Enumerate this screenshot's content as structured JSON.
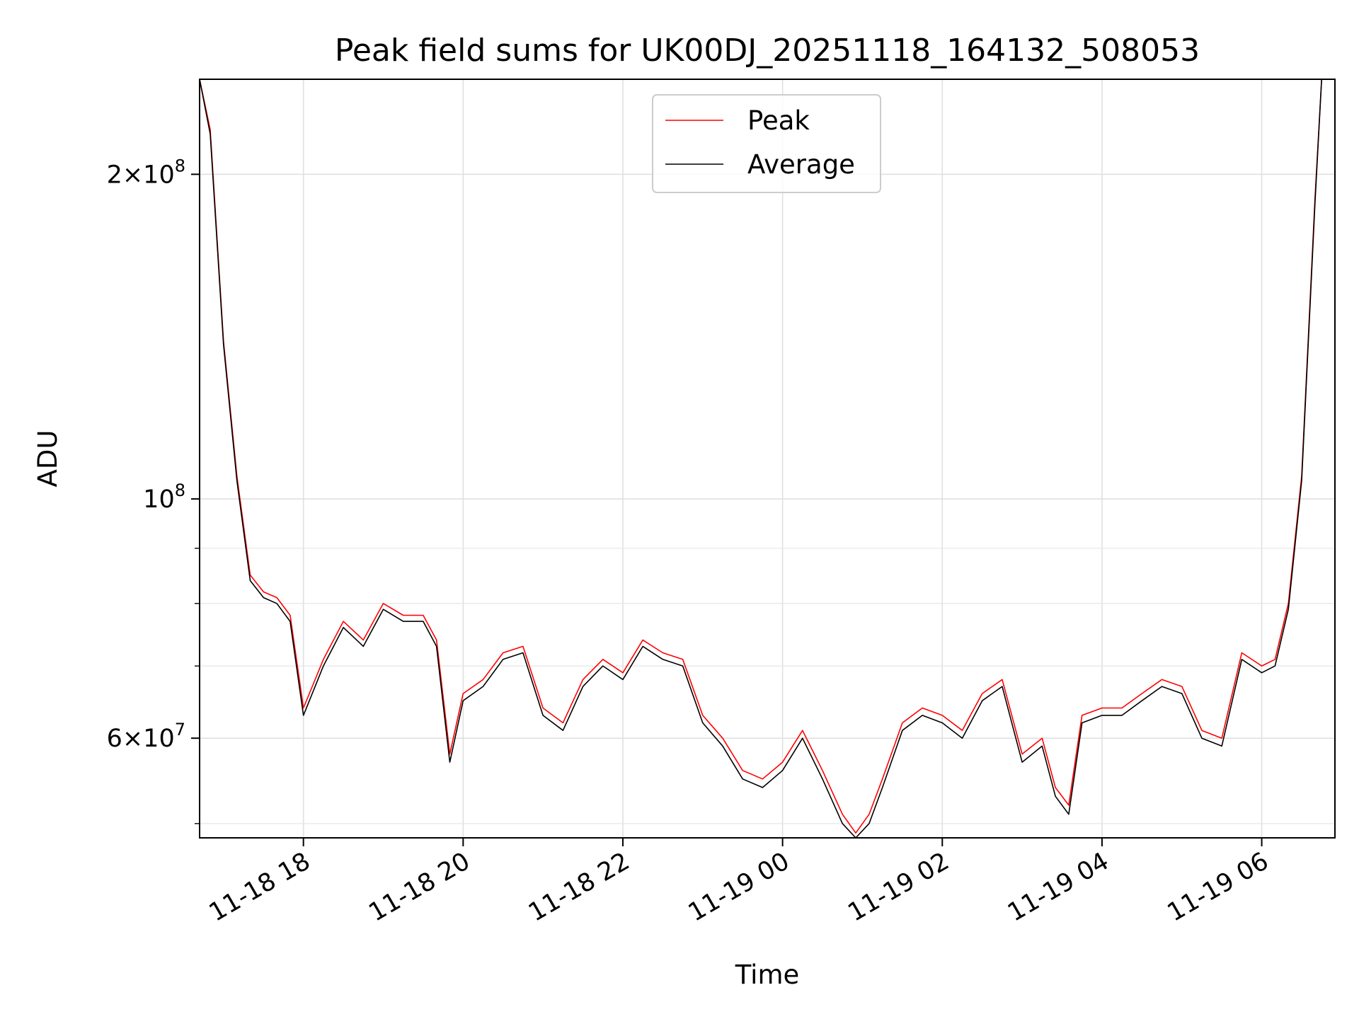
{
  "chart_data": {
    "type": "line",
    "title": "Peak field sums for UK00DJ_20251118_164132_508053",
    "xlabel": "Time",
    "ylabel": "ADU",
    "yscale": "log",
    "xlim": [
      "2025-11-18 16:42",
      "2025-11-19 06:55"
    ],
    "ylim": [
      48500000,
      245000000
    ],
    "grid": true,
    "legend": {
      "position": "top-center",
      "entries": [
        "Peak",
        "Average"
      ]
    },
    "x_ticks": [
      "11-18 18",
      "11-18 20",
      "11-18 22",
      "11-19 00",
      "11-19 02",
      "11-19 04",
      "11-19 06"
    ],
    "y_ticks": [
      {
        "base": "2×10",
        "exp": "8",
        "value": 200000000
      },
      {
        "base": "10",
        "exp": "8",
        "value": 100000000
      },
      {
        "base": "6×10",
        "exp": "7",
        "value": 60000000
      }
    ],
    "x": [
      "2025-11-18 16:42",
      "2025-11-18 16:50",
      "2025-11-18 17:00",
      "2025-11-18 17:10",
      "2025-11-18 17:20",
      "2025-11-18 17:30",
      "2025-11-18 17:40",
      "2025-11-18 17:50",
      "2025-11-18 18:00",
      "2025-11-18 18:15",
      "2025-11-18 18:30",
      "2025-11-18 18:45",
      "2025-11-18 19:00",
      "2025-11-18 19:15",
      "2025-11-18 19:30",
      "2025-11-18 19:40",
      "2025-11-18 19:50",
      "2025-11-18 20:00",
      "2025-11-18 20:15",
      "2025-11-18 20:30",
      "2025-11-18 20:45",
      "2025-11-18 21:00",
      "2025-11-18 21:15",
      "2025-11-18 21:30",
      "2025-11-18 21:45",
      "2025-11-18 22:00",
      "2025-11-18 22:15",
      "2025-11-18 22:30",
      "2025-11-18 22:45",
      "2025-11-18 23:00",
      "2025-11-18 23:15",
      "2025-11-18 23:30",
      "2025-11-18 23:45",
      "2025-11-19 00:00",
      "2025-11-19 00:15",
      "2025-11-19 00:30",
      "2025-11-19 00:45",
      "2025-11-19 00:55",
      "2025-11-19 01:05",
      "2025-11-19 01:15",
      "2025-11-19 01:30",
      "2025-11-19 01:45",
      "2025-11-19 02:00",
      "2025-11-19 02:15",
      "2025-11-19 02:30",
      "2025-11-19 02:45",
      "2025-11-19 03:00",
      "2025-11-19 03:15",
      "2025-11-19 03:25",
      "2025-11-19 03:35",
      "2025-11-19 03:45",
      "2025-11-19 04:00",
      "2025-11-19 04:15",
      "2025-11-19 04:30",
      "2025-11-19 04:45",
      "2025-11-19 05:00",
      "2025-11-19 05:15",
      "2025-11-19 05:30",
      "2025-11-19 05:45",
      "2025-11-19 06:00",
      "2025-11-19 06:10",
      "2025-11-19 06:20",
      "2025-11-19 06:30",
      "2025-11-19 06:40",
      "2025-11-19 06:45"
    ],
    "series": [
      {
        "name": "Peak",
        "color": "#ff0000",
        "values": [
          245000000,
          220000000,
          140000000,
          105000000,
          85000000,
          82000000,
          81000000,
          78000000,
          64000000,
          71000000,
          77000000,
          74000000,
          80000000,
          78000000,
          78000000,
          74000000,
          58000000,
          66000000,
          68000000,
          72000000,
          73000000,
          64000000,
          62000000,
          68000000,
          71000000,
          69000000,
          74000000,
          72000000,
          71000000,
          63000000,
          60000000,
          56000000,
          55000000,
          57000000,
          61000000,
          56000000,
          51000000,
          49000000,
          51000000,
          55000000,
          62000000,
          64000000,
          63000000,
          61000000,
          66000000,
          68000000,
          58000000,
          60000000,
          54000000,
          52000000,
          63000000,
          64000000,
          64000000,
          66000000,
          68000000,
          67000000,
          61000000,
          60000000,
          72000000,
          70000000,
          71000000,
          80000000,
          105000000,
          190000000,
          245000000
        ]
      },
      {
        "name": "Average",
        "color": "#000000",
        "values": [
          245000000,
          218000000,
          139000000,
          104000000,
          84000000,
          81000000,
          80000000,
          77000000,
          63000000,
          70000000,
          76000000,
          73000000,
          79000000,
          77000000,
          77000000,
          73000000,
          57000000,
          65000000,
          67000000,
          71000000,
          72000000,
          63000000,
          61000000,
          67000000,
          70000000,
          68000000,
          73000000,
          71000000,
          70000000,
          62000000,
          59000000,
          55000000,
          54000000,
          56000000,
          60000000,
          55000000,
          50000000,
          48500000,
          50000000,
          54000000,
          61000000,
          63000000,
          62000000,
          60000000,
          65000000,
          67000000,
          57000000,
          59000000,
          53000000,
          51000000,
          62000000,
          63000000,
          63000000,
          65000000,
          67000000,
          66000000,
          60000000,
          59000000,
          71000000,
          69000000,
          70000000,
          79000000,
          104000000,
          188000000,
          245000000
        ]
      }
    ]
  }
}
